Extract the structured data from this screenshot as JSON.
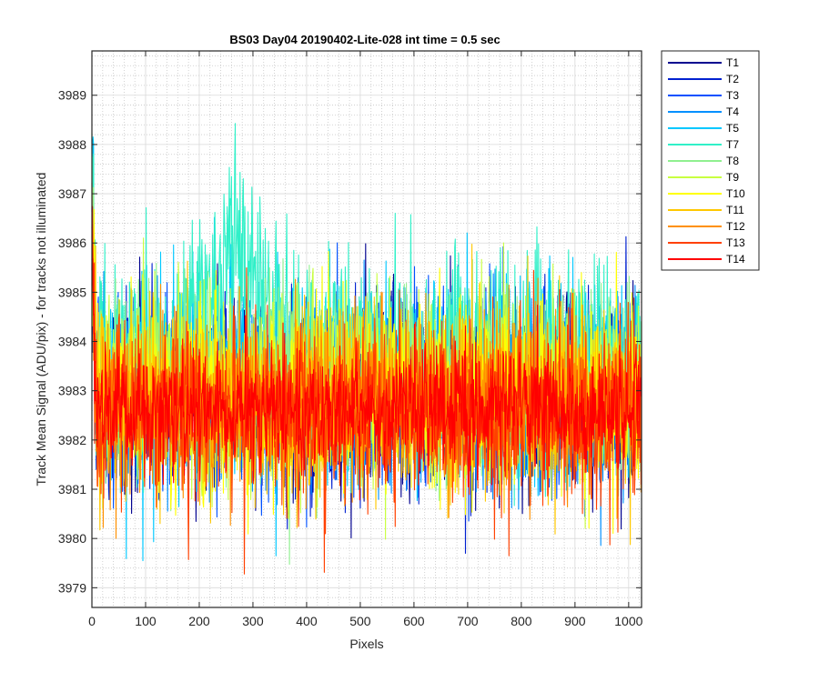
{
  "chart_data": {
    "type": "line",
    "title": "BS03 Day04 20190402-Lite-028 int time = 0.5 sec",
    "xlabel": "Pixels",
    "ylabel": "Track Mean Signal (ADU/pix) - for tracks not illuminated",
    "xlim": [
      0,
      1024
    ],
    "ylim": [
      3978.6,
      3989.9
    ],
    "xticks": [
      0,
      100,
      200,
      300,
      400,
      500,
      600,
      700,
      800,
      900,
      1000
    ],
    "yticks": [
      3979,
      3980,
      3981,
      3982,
      3983,
      3984,
      3985,
      3986,
      3987,
      3988,
      3989
    ],
    "minor_grid": true,
    "legend_position": "outside-top-right",
    "num_pixels": 1024,
    "series": [
      {
        "name": "T1",
        "color": "#00008f",
        "mean": 3982.9,
        "noise": 0.95
      },
      {
        "name": "T2",
        "color": "#0020d0",
        "mean": 3983.0,
        "noise": 0.95
      },
      {
        "name": "T3",
        "color": "#0050ff",
        "mean": 3983.0,
        "noise": 0.95
      },
      {
        "name": "T4",
        "color": "#0090ff",
        "mean": 3983.1,
        "noise": 0.95
      },
      {
        "name": "T5",
        "color": "#00c8ff",
        "mean": 3983.3,
        "noise": 1.0
      },
      {
        "name": "T7",
        "color": "#30f0c8",
        "mean": 3983.6,
        "noise": 1.05,
        "hump": {
          "center": 265,
          "width": 75,
          "amp": 2.2
        }
      },
      {
        "name": "T8",
        "color": "#90f090",
        "mean": 3983.3,
        "noise": 0.95
      },
      {
        "name": "T9",
        "color": "#c8ff40",
        "mean": 3983.1,
        "noise": 0.95
      },
      {
        "name": "T10",
        "color": "#ffff00",
        "mean": 3982.9,
        "noise": 0.95
      },
      {
        "name": "T11",
        "color": "#ffc800",
        "mean": 3982.8,
        "noise": 0.95
      },
      {
        "name": "T12",
        "color": "#ff9000",
        "mean": 3982.7,
        "noise": 0.9
      },
      {
        "name": "T13",
        "color": "#ff4000",
        "mean": 3982.6,
        "noise": 0.9
      },
      {
        "name": "T14",
        "color": "#ff0000",
        "mean": 3982.6,
        "noise": 0.6
      }
    ]
  }
}
